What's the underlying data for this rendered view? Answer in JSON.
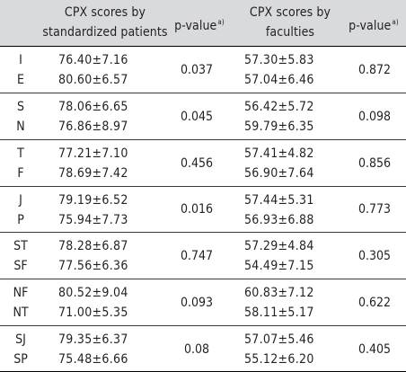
{
  "headers": {
    "sp_line1": "CPX scores by",
    "sp_line2": "standardized patients",
    "pvalue": "p-value",
    "pvalue_sup": "a)",
    "fc_line1": "CPX scores by",
    "fc_line2": "faculties",
    "pvalue2": "p-value",
    "pvalue2_sup": "a)"
  },
  "groups": [
    {
      "rows": [
        {
          "type": "I",
          "sp": "76.40±7.16",
          "fc": "57.30±5.83"
        },
        {
          "type": "E",
          "sp": "80.60±6.57",
          "fc": "57.04±6.46"
        }
      ],
      "p_sp": "0.037",
      "p_fc": "0.872"
    },
    {
      "rows": [
        {
          "type": "S",
          "sp": "78.06±6.65",
          "fc": "56.42±5.72"
        },
        {
          "type": "N",
          "sp": "76.86±8.97",
          "fc": "59.79±6.35"
        }
      ],
      "p_sp": "0.045",
      "p_fc": "0.098"
    },
    {
      "rows": [
        {
          "type": "T",
          "sp": "77.21±7.10",
          "fc": "57.41±4.82"
        },
        {
          "type": "F",
          "sp": "78.69±7.42",
          "fc": "56.90±7.64"
        }
      ],
      "p_sp": "0.456",
      "p_fc": "0.856"
    },
    {
      "rows": [
        {
          "type": "J",
          "sp": "79.19±6.52",
          "fc": "57.44±5.31"
        },
        {
          "type": "P",
          "sp": "75.94±7.73",
          "fc": "56.93±6.88"
        }
      ],
      "p_sp": "0.016",
      "p_fc": "0.773"
    },
    {
      "rows": [
        {
          "type": "ST",
          "sp": "78.28±6.87",
          "fc": "57.29±4.84"
        },
        {
          "type": "SF",
          "sp": "77.56±6.36",
          "fc": "54.49±7.15"
        }
      ],
      "p_sp": "0.747",
      "p_fc": "0.305"
    },
    {
      "rows": [
        {
          "type": "NF",
          "sp": "80.52±9.04",
          "fc": "60.83±7.12"
        },
        {
          "type": "NT",
          "sp": "71.00±5.35",
          "fc": "58.11±5.17"
        }
      ],
      "p_sp": "0.093",
      "p_fc": "0.622"
    },
    {
      "rows": [
        {
          "type": "SJ",
          "sp": "79.35±6.37",
          "fc": "57.07±5.46"
        },
        {
          "type": "SP",
          "sp": "75.48±6.66",
          "fc": "55.12±6.20"
        }
      ],
      "p_sp": "0.08",
      "p_fc": "0.405"
    }
  ]
}
